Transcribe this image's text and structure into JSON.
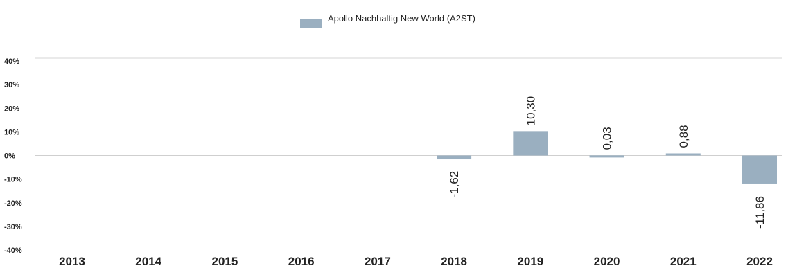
{
  "chart_data": {
    "type": "bar",
    "legend": {
      "label": "Apollo Nachhaltig New World (A2ST)",
      "color": "#9aafc0"
    },
    "categories": [
      "2013",
      "2014",
      "2015",
      "2016",
      "2017",
      "2018",
      "2019",
      "2020",
      "2021",
      "2022"
    ],
    "series": [
      {
        "name": "Apollo Nachhaltig New World (A2ST)",
        "values": [
          null,
          null,
          null,
          null,
          null,
          -1.62,
          10.3,
          0.03,
          0.88,
          -11.86
        ],
        "labels": [
          "",
          "",
          "",
          "",
          "",
          "-1,62",
          "10,30",
          "0,03",
          "0,88",
          "-11,86"
        ],
        "color": "#9aafc0"
      }
    ],
    "y_ticks": [
      40,
      30,
      20,
      10,
      0,
      -10,
      -20,
      -30,
      -40
    ],
    "y_tick_labels": [
      "40%",
      "30%",
      "20%",
      "10%",
      "0%",
      "-10%",
      "-20%",
      "-30%",
      "-40%"
    ],
    "ylim": [
      -40,
      40
    ],
    "grid": false,
    "legend_position": "top-center"
  }
}
